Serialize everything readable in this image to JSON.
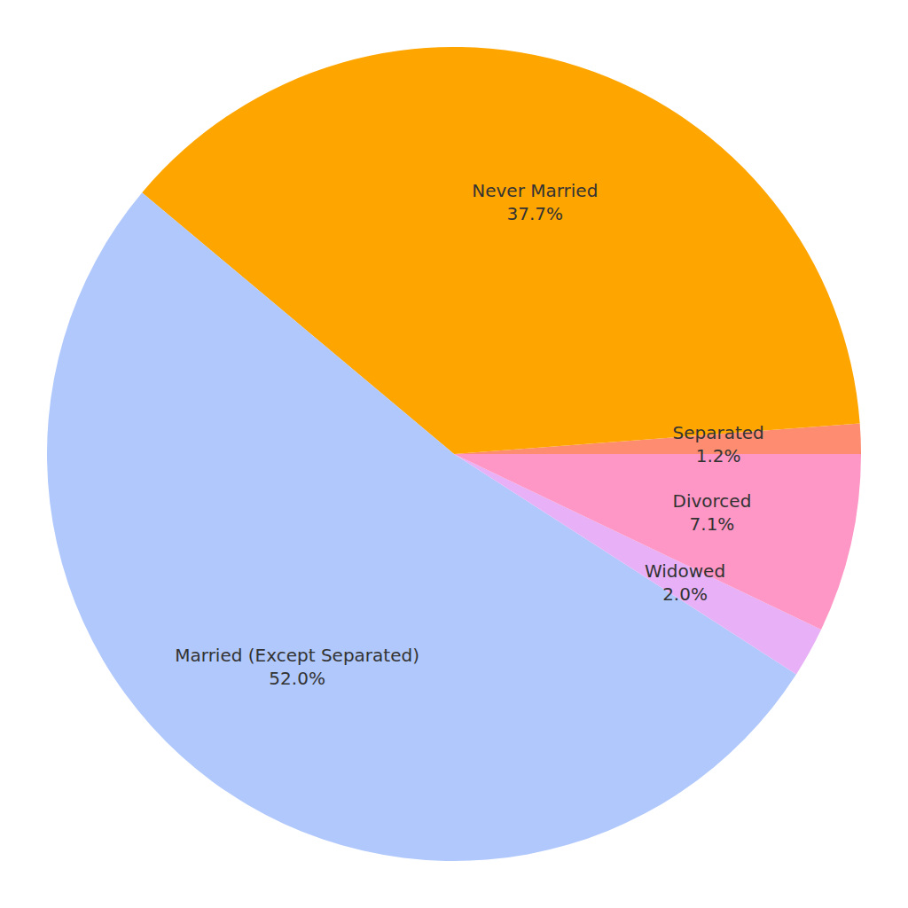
{
  "chart_data": {
    "type": "pie",
    "categories": [
      "Separated",
      "Never Married",
      "Married (Except Separated)",
      "Widowed",
      "Divorced"
    ],
    "values": [
      1.2,
      37.7,
      52.0,
      2.0,
      7.1
    ],
    "value_labels": [
      "1.2%",
      "37.7%",
      "52.0%",
      "2.0%",
      "7.1%"
    ],
    "colors": [
      "#fe8c70",
      "#ffa500",
      "#b0c8fc",
      "#e8b0f6",
      "#fe96c6"
    ],
    "data_labels": true
  }
}
